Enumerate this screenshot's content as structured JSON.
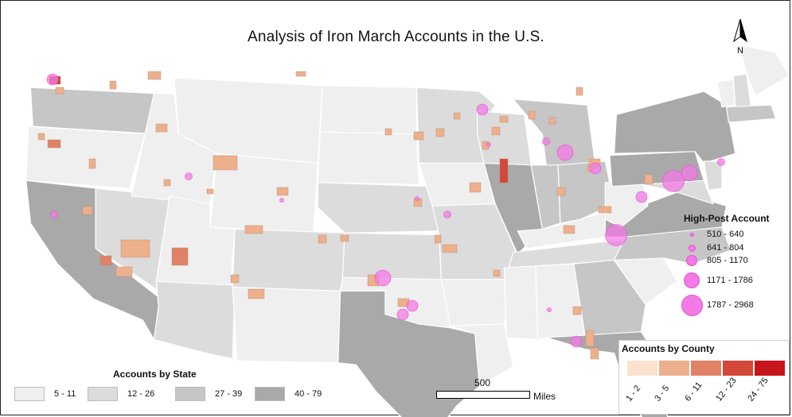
{
  "title": "Analysis of Iron March Accounts in the U.S.",
  "north_label": "N",
  "colors": {
    "state_5_11": "#efefef",
    "state_12_26": "#dcdcdc",
    "state_27_39": "#c6c6c6",
    "state_40_79": "#a9a9a9",
    "county_1_2": "#fbe2cf",
    "county_3_5": "#edb08c",
    "county_6_11": "#e08267",
    "county_12_23": "#d4483a",
    "county_24_75": "#c6151b",
    "high_post": "#f47ae6"
  },
  "state_legend": {
    "title": "Accounts by State",
    "classes": [
      {
        "label": "5 - 11",
        "color": "#efefef"
      },
      {
        "label": "12 - 26",
        "color": "#dcdcdc"
      },
      {
        "label": "27 - 39",
        "color": "#c6c6c6"
      },
      {
        "label": "40 - 79",
        "color": "#a9a9a9"
      }
    ]
  },
  "high_post_legend": {
    "title": "High-Post Account",
    "classes": [
      {
        "label": "510 - 640"
      },
      {
        "label": "641 - 804"
      },
      {
        "label": "805 - 1170"
      },
      {
        "label": "1171 - 1786"
      },
      {
        "label": "1787 - 2968"
      }
    ]
  },
  "county_legend": {
    "title": "Accounts by County",
    "classes": [
      {
        "label": "1 - 2",
        "color": "#fbe2cf"
      },
      {
        "label": "3 - 5",
        "color": "#edb08c"
      },
      {
        "label": "6 - 11",
        "color": "#e08267"
      },
      {
        "label": "12 - 23",
        "color": "#d4483a"
      },
      {
        "label": "24 - 75",
        "color": "#c6151b"
      }
    ]
  },
  "scale": {
    "value": "500",
    "unit": "Miles"
  },
  "state_classes": [
    {
      "state": "WA",
      "class": 3
    },
    {
      "state": "OR",
      "class": 1
    },
    {
      "state": "CA",
      "class": 4
    },
    {
      "state": "NV",
      "class": 2
    },
    {
      "state": "ID",
      "class": 1
    },
    {
      "state": "MT",
      "class": 1
    },
    {
      "state": "WY",
      "class": 1
    },
    {
      "state": "UT",
      "class": 1
    },
    {
      "state": "AZ",
      "class": 2
    },
    {
      "state": "CO",
      "class": 2
    },
    {
      "state": "NM",
      "class": 1
    },
    {
      "state": "ND",
      "class": 1
    },
    {
      "state": "SD",
      "class": 1
    },
    {
      "state": "NE",
      "class": 2
    },
    {
      "state": "KS",
      "class": 2
    },
    {
      "state": "OK",
      "class": 1
    },
    {
      "state": "TX",
      "class": 4
    },
    {
      "state": "MN",
      "class": 2
    },
    {
      "state": "IA",
      "class": 1
    },
    {
      "state": "MO",
      "class": 2
    },
    {
      "state": "AR",
      "class": 1
    },
    {
      "state": "LA",
      "class": 1
    },
    {
      "state": "WI",
      "class": 2
    },
    {
      "state": "IL",
      "class": 4
    },
    {
      "state": "MI",
      "class": 3
    },
    {
      "state": "IN",
      "class": 3
    },
    {
      "state": "OH",
      "class": 3
    },
    {
      "state": "KY",
      "class": 1
    },
    {
      "state": "TN",
      "class": 2
    },
    {
      "state": "MS",
      "class": 1
    },
    {
      "state": "AL",
      "class": 1
    },
    {
      "state": "GA",
      "class": 3
    },
    {
      "state": "FL",
      "class": 4
    },
    {
      "state": "SC",
      "class": 1
    },
    {
      "state": "NC",
      "class": 3
    },
    {
      "state": "VA",
      "class": 4
    },
    {
      "state": "WV",
      "class": 1
    },
    {
      "state": "PA",
      "class": 4
    },
    {
      "state": "NY",
      "class": 4
    },
    {
      "state": "MD",
      "class": 2
    },
    {
      "state": "NJ",
      "class": 2
    },
    {
      "state": "ME",
      "class": 1
    },
    {
      "state": "NH",
      "class": 2
    },
    {
      "state": "VT",
      "class": 1
    },
    {
      "state": "MA",
      "class": 3
    }
  ],
  "high_post_accounts": [
    {
      "location": "Seattle, WA",
      "class": 3
    },
    {
      "location": "Bay Area, CA",
      "class": 2
    },
    {
      "location": "Salt Lake City, UT",
      "class": 2
    },
    {
      "location": "Denver, CO",
      "class": 1
    },
    {
      "location": "Minneapolis, MN",
      "class": 3
    },
    {
      "location": "Omaha, NE",
      "class": 1
    },
    {
      "location": "Kansas City, MO",
      "class": 2
    },
    {
      "location": "Dallas, TX",
      "class": 4
    },
    {
      "location": "Houston, TX",
      "class": 3
    },
    {
      "location": "Austin, TX",
      "class": 3
    },
    {
      "location": "Detroit, MI",
      "class": 4
    },
    {
      "location": "Grand Rapids, MI",
      "class": 2
    },
    {
      "location": "Milwaukee, WI",
      "class": 1
    },
    {
      "location": "Cleveland, OH",
      "class": 3
    },
    {
      "location": "Washington, DC",
      "class": 3
    },
    {
      "location": "Philadelphia, PA",
      "class": 5
    },
    {
      "location": "New York, NY",
      "class": 4
    },
    {
      "location": "Boston, MA",
      "class": 2
    },
    {
      "location": "Raleigh, NC",
      "class": 5
    },
    {
      "location": "Tampa, FL",
      "class": 3
    },
    {
      "location": "Atlanta, GA",
      "class": 1
    }
  ]
}
